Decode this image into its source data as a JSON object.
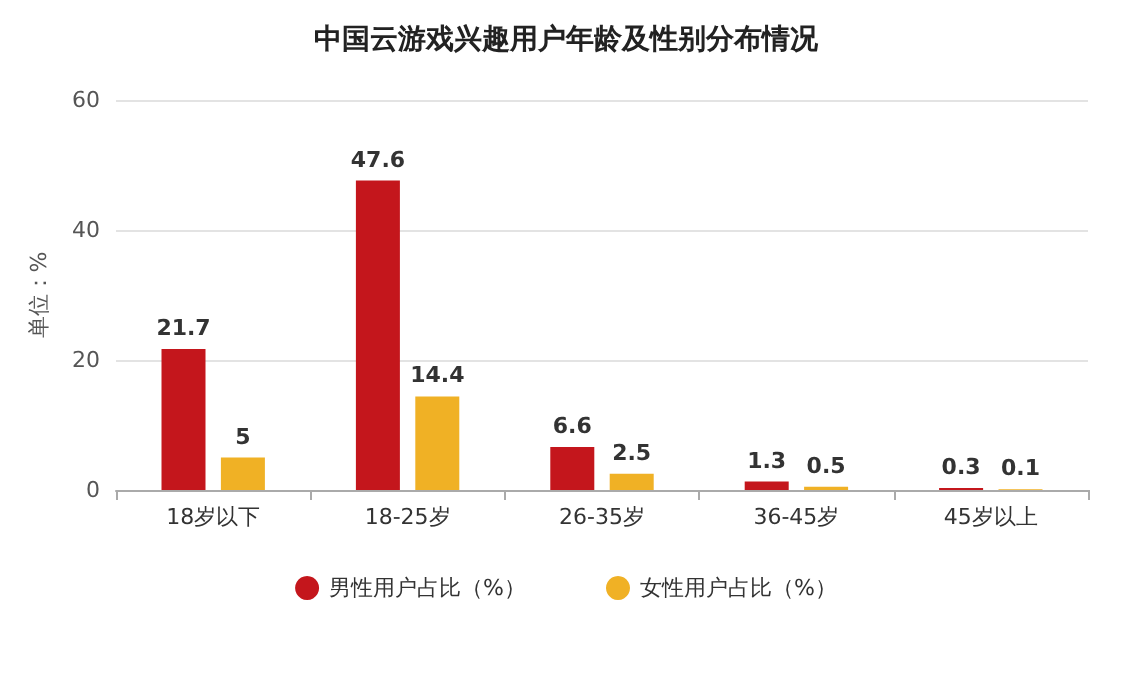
{
  "chart_data": {
    "type": "bar",
    "title": "中国云游戏兴趣用户年龄及性别分布情况",
    "ylabel": "单位：%",
    "categories": [
      "18岁以下",
      "18-25岁",
      "26-35岁",
      "36-45岁",
      "45岁以上"
    ],
    "series": [
      {
        "name": "男性用户占比（%）",
        "color": "#c4161c",
        "values": [
          21.7,
          47.6,
          6.6,
          1.3,
          0.3
        ]
      },
      {
        "name": "女性用户占比（%）",
        "color": "#f0b125",
        "values": [
          5,
          14.4,
          2.5,
          0.5,
          0.1
        ]
      }
    ],
    "ylim": [
      0,
      60
    ],
    "yticks": [
      0,
      20,
      40,
      60
    ],
    "grid": "y",
    "legend": "bottom",
    "data_labels": true
  }
}
